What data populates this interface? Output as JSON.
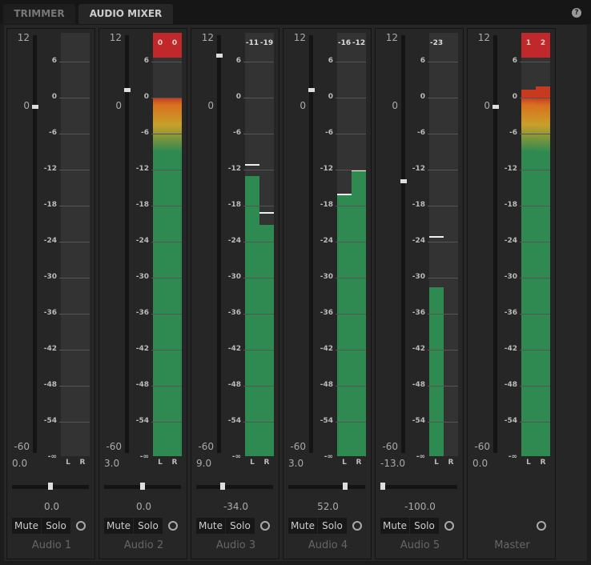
{
  "tabs": [
    {
      "label": "TRIMMER",
      "active": false
    },
    {
      "label": "AUDIO MIXER",
      "active": true
    }
  ],
  "help_label": "?",
  "fader_scale": [
    "12",
    "0",
    "-60"
  ],
  "meter_scale": [
    "6",
    "0",
    "-6",
    "-12",
    "-18",
    "-24",
    "-30",
    "-36",
    "-42",
    "-48",
    "-54",
    "-∞"
  ],
  "mute_label": "Mute",
  "solo_label": "Solo",
  "left_label": "L",
  "right_label": "R",
  "colors": {
    "green": "#2f8a52",
    "clip": "#c0282b"
  },
  "channels": [
    {
      "name": "Audio 1",
      "volume": "0.0",
      "volume_db": 0,
      "pan": "0.0",
      "pan_value": 0,
      "levels": [
        null,
        null
      ],
      "peaks": [
        null,
        null
      ],
      "peak_labels": [
        "",
        ""
      ],
      "clip": false,
      "has_controls": true
    },
    {
      "name": "Audio 2",
      "volume": "3.0",
      "volume_db": 3,
      "pan": "0.0",
      "pan_value": 0,
      "levels": [
        0,
        0
      ],
      "peaks": [
        null,
        null
      ],
      "peak_labels": [
        "0",
        "0"
      ],
      "clip": true,
      "has_controls": true
    },
    {
      "name": "Audio 3",
      "volume": "9.0",
      "volume_db": 9,
      "pan": "-34.0",
      "pan_value": -34,
      "levels": [
        -13,
        -21.2
      ],
      "peaks": [
        -11,
        -19
      ],
      "peak_labels": [
        "-11",
        "-19"
      ],
      "clip": false,
      "has_controls": true
    },
    {
      "name": "Audio 4",
      "volume": "3.0",
      "volume_db": 3,
      "pan": "52.0",
      "pan_value": 52,
      "levels": [
        -16,
        -12
      ],
      "peaks": [
        -16,
        -12
      ],
      "peak_labels": [
        "-16",
        "-12"
      ],
      "clip": false,
      "has_controls": true
    },
    {
      "name": "Audio 5",
      "volume": "-13.0",
      "volume_db": -13,
      "pan": "-100.0",
      "pan_value": -100,
      "levels": [
        -31.6,
        null
      ],
      "peaks": [
        -23,
        null
      ],
      "peak_labels": [
        "-23",
        ""
      ],
      "clip": false,
      "has_controls": true
    },
    {
      "name": "Master",
      "volume": "0.0",
      "volume_db": 0,
      "pan": null,
      "pan_value": null,
      "levels": [
        1.3,
        1.9
      ],
      "peaks": [
        null,
        null
      ],
      "peak_labels": [
        "1",
        "2"
      ],
      "clip": true,
      "has_controls": false
    }
  ]
}
